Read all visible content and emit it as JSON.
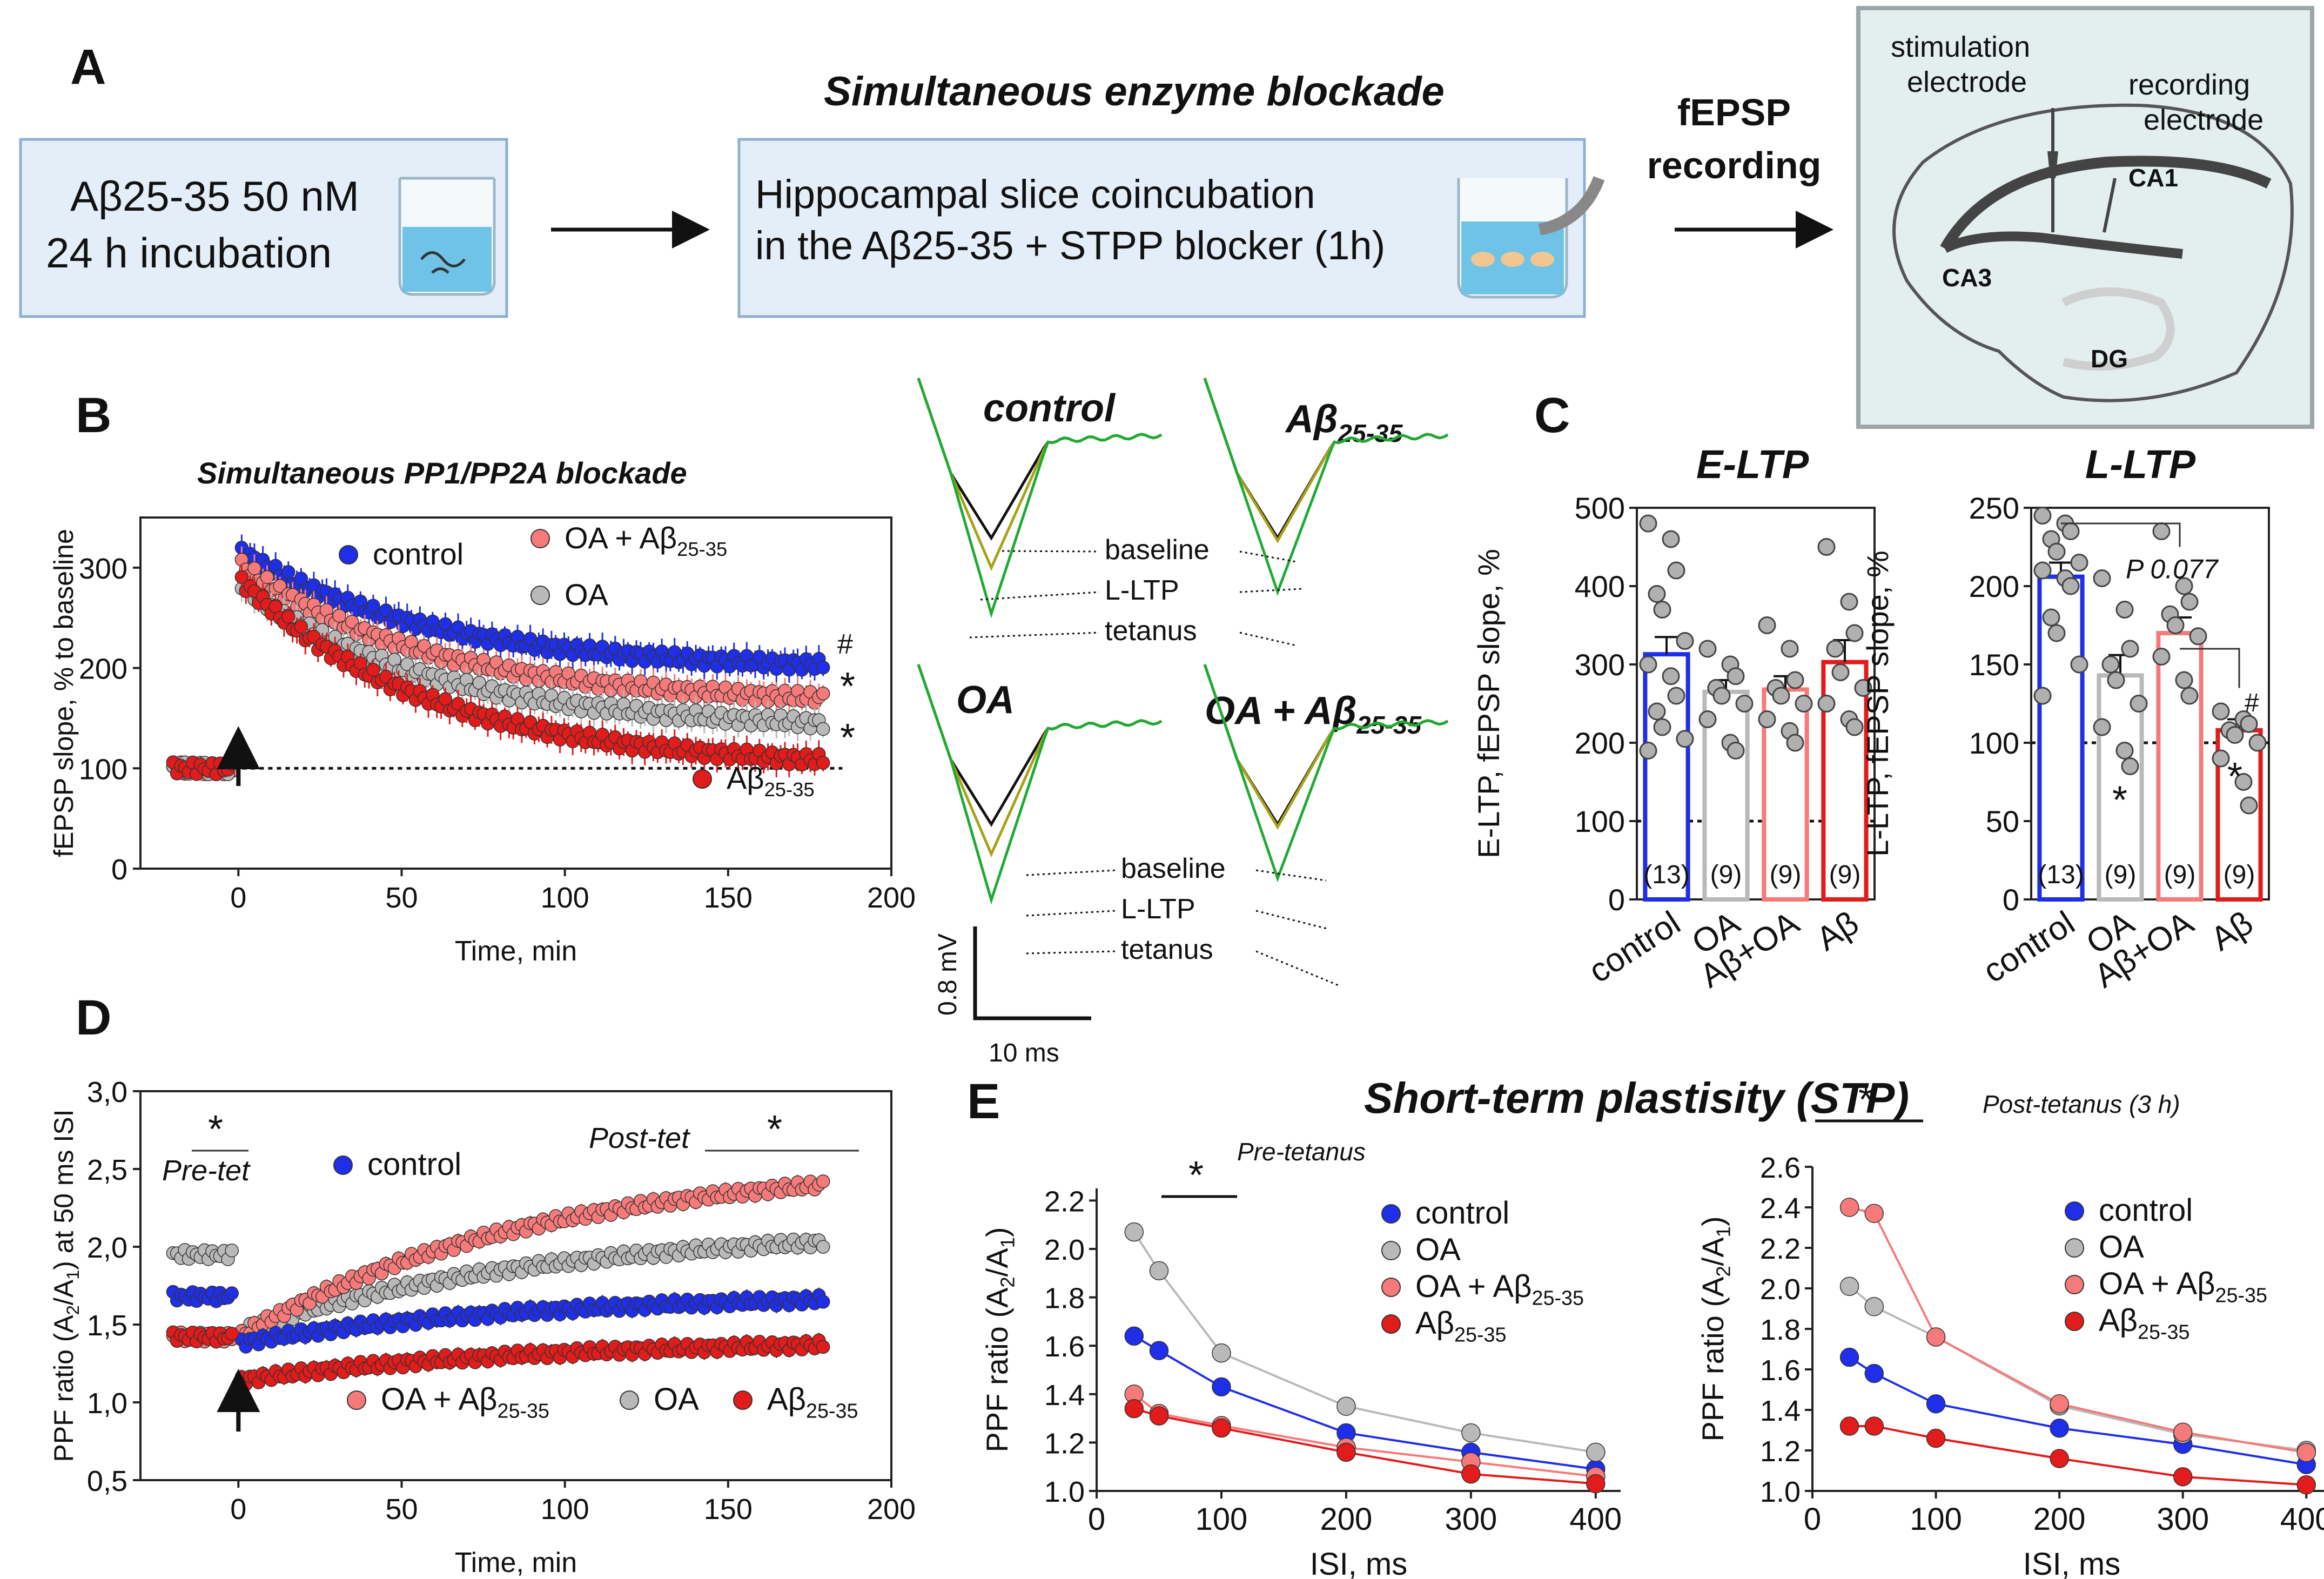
{
  "colors": {
    "control": "#1f2ee8",
    "oa": "#b9b9b9",
    "oa_ab": "#f77a7a",
    "ab": "#e21b1b",
    "box_fill": "#e3eef8",
    "box_stroke": "#8fb0cf",
    "title_blue": "#2a5d8f",
    "green": "#1faa33",
    "olive": "#a8a21a"
  },
  "panel_a": {
    "label": "A",
    "box1_line1": "Aβ25-35 50 nM",
    "box1_line2": "24 h incubation",
    "enzyme_title": "Simultaneous enzyme blockade",
    "box2_line1": "Hippocampal slice coincubation",
    "box2_line2": "in the Aβ25-35 + STPP blocker (1h)",
    "fepsp_line1": "fEPSP",
    "fepsp_line2": "recording",
    "stim_line1": "stimulation",
    "stim_line2": "electrode",
    "rec_line1": "recording",
    "rec_line2": "electrode",
    "ca1": "CA1",
    "ca3": "CA3",
    "dg": "DG"
  },
  "traces": {
    "control": "control",
    "ab": "Aβ25-35",
    "oa": "OA",
    "oa_ab": "OA + Aβ25-35",
    "baseline": "baseline",
    "lltp": "L-LTP",
    "tetanus": "tetanus",
    "scale_v": "0.8 mV",
    "scale_t": "10 ms"
  },
  "chart_data": [
    {
      "id": "B",
      "type": "scatter",
      "title": "Simultaneous PP1/PP2A blockade",
      "xlabel": "Time, min",
      "ylabel": "fEPSP slope, % to baseline",
      "xlim": [
        -30,
        200
      ],
      "ylim": [
        0,
        350
      ],
      "xticks": [
        0,
        50,
        100,
        150,
        200
      ],
      "yticks": [
        0,
        100,
        200,
        300
      ],
      "legend": [
        "control",
        "OA + Aβ25-35",
        "OA",
        "Aβ25-35"
      ],
      "series": [
        {
          "name": "control",
          "baseline": 100,
          "peak": 318,
          "end": 203
        },
        {
          "name": "OA + Aβ25-35",
          "baseline": 100,
          "peak": 305,
          "end": 170
        },
        {
          "name": "OA",
          "baseline": 100,
          "peak": 285,
          "end": 145
        },
        {
          "name": "Aβ25-35",
          "baseline": 100,
          "peak": 290,
          "end": 108
        }
      ],
      "annotations": [
        "#",
        "*",
        "*"
      ]
    },
    {
      "id": "C1",
      "type": "bar",
      "title": "E-LTP",
      "ylabel": "E-LTP, fEPSP slope, %",
      "categories": [
        "control",
        "OA",
        "Aβ+OA",
        "Aβ"
      ],
      "values": [
        313,
        265,
        268,
        303
      ],
      "errors": [
        22,
        15,
        17,
        28
      ],
      "n": [
        "(13)",
        "(9)",
        "(9)",
        "(9)"
      ],
      "ylim": [
        0,
        500
      ],
      "yticks": [
        0,
        100,
        200,
        300,
        400,
        500
      ],
      "points": [
        [
          480,
          460,
          420,
          390,
          370,
          330,
          300,
          285,
          260,
          240,
          220,
          205,
          190
        ],
        [
          320,
          300,
          285,
          270,
          260,
          250,
          230,
          200,
          190
        ],
        [
          350,
          320,
          280,
          270,
          260,
          250,
          230,
          215,
          200
        ],
        [
          450,
          380,
          340,
          320,
          290,
          270,
          250,
          230,
          220
        ]
      ]
    },
    {
      "id": "C2",
      "type": "bar",
      "title": "L-LTP",
      "ylabel": "L-LTP, fEPSP slope, %",
      "categories": [
        "control",
        "OA",
        "Aβ+OA",
        "Aβ"
      ],
      "values": [
        206,
        143,
        170,
        108
      ],
      "errors": [
        9,
        13,
        10,
        7
      ],
      "n": [
        "(13)",
        "(9)",
        "(9)",
        "(9)"
      ],
      "ylim": [
        0,
        250
      ],
      "yticks": [
        0,
        50,
        100,
        150,
        200,
        250
      ],
      "p_label": "P 0.077",
      "annotations": [
        "*",
        "#",
        "*"
      ],
      "points": [
        [
          245,
          240,
          235,
          230,
          222,
          215,
          210,
          205,
          200,
          180,
          170,
          150,
          130
        ],
        [
          205,
          185,
          160,
          150,
          140,
          125,
          110,
          95,
          85
        ],
        [
          235,
          200,
          190,
          182,
          175,
          168,
          155,
          140,
          130
        ],
        [
          120,
          115,
          112,
          108,
          105,
          100,
          90,
          75,
          60
        ]
      ]
    },
    {
      "id": "D",
      "type": "scatter",
      "xlabel": "Time, min",
      "ylabel": "PPF ratio (A2/A1) at 50 ms ISI",
      "xlim": [
        -30,
        200
      ],
      "ylim": [
        0.5,
        3.0
      ],
      "xticks": [
        0,
        50,
        100,
        150,
        200
      ],
      "yticks": [
        "0,5",
        "1,0",
        "1,5",
        "2,0",
        "2,5",
        "3,0"
      ],
      "ytick_values": [
        0.5,
        1.0,
        1.5,
        2.0,
        2.5,
        3.0
      ],
      "pre_tet": "Pre-tet",
      "post_tet": "Post-tet",
      "star": "*",
      "legend": [
        "control",
        "OA + Aβ25-35",
        "OA",
        "Aβ25-35"
      ],
      "series": [
        {
          "name": "control",
          "pre": 1.68,
          "post_start": 1.38,
          "post_end": 1.66
        },
        {
          "name": "OA + Aβ25-35",
          "pre": 1.42,
          "post_start": 1.42,
          "post_end": 2.4
        },
        {
          "name": "OA",
          "pre": 1.95,
          "post_start": 1.45,
          "post_end": 2.03
        },
        {
          "name": "Aβ25-35",
          "pre": 1.42,
          "post_start": 1.14,
          "post_end": 1.37
        }
      ]
    },
    {
      "id": "E1",
      "type": "line",
      "title": "Pre-tetanus",
      "xlabel": "ISI, ms",
      "ylabel": "PPF ratio (A2/A1)",
      "x": [
        30,
        50,
        100,
        200,
        300,
        400
      ],
      "xlim": [
        0,
        420
      ],
      "xticks": [
        0,
        100,
        200,
        300,
        400
      ],
      "ylim": [
        1.0,
        2.25
      ],
      "yticks": [
        1.0,
        1.2,
        1.4,
        1.6,
        1.8,
        2.0,
        2.2
      ],
      "star": "*",
      "series": [
        {
          "name": "control",
          "values": [
            1.64,
            1.58,
            1.43,
            1.24,
            1.16,
            1.09
          ]
        },
        {
          "name": "OA",
          "values": [
            2.07,
            1.91,
            1.57,
            1.35,
            1.24,
            1.16
          ]
        },
        {
          "name": "OA + Aβ25-35",
          "values": [
            1.4,
            1.32,
            1.27,
            1.18,
            1.12,
            1.06
          ]
        },
        {
          "name": "Aβ25-35",
          "values": [
            1.34,
            1.31,
            1.26,
            1.16,
            1.07,
            1.03
          ]
        }
      ]
    },
    {
      "id": "E2",
      "type": "line",
      "title": "Post-tetanus (3 h)",
      "xlabel": "ISI, ms",
      "ylabel": "PPF ratio (A2/A1)",
      "x": [
        30,
        50,
        100,
        200,
        300,
        400
      ],
      "xlim": [
        0,
        420
      ],
      "xticks": [
        0,
        100,
        200,
        300,
        400
      ],
      "ylim": [
        1.0,
        2.6
      ],
      "yticks": [
        1.0,
        1.2,
        1.4,
        1.6,
        1.8,
        2.0,
        2.2,
        2.4,
        2.6
      ],
      "star": "*",
      "series": [
        {
          "name": "control",
          "values": [
            1.66,
            1.58,
            1.43,
            1.31,
            1.23,
            1.13
          ]
        },
        {
          "name": "OA",
          "values": [
            2.01,
            1.91,
            1.76,
            1.42,
            1.28,
            1.2
          ]
        },
        {
          "name": "OA + Aβ25-35",
          "values": [
            2.4,
            2.37,
            1.76,
            1.43,
            1.29,
            1.19
          ]
        },
        {
          "name": "Aβ25-35",
          "values": [
            1.32,
            1.32,
            1.26,
            1.16,
            1.07,
            1.03
          ]
        }
      ]
    }
  ],
  "stp_title": "Short-term plastisity (STP)",
  "labels": {
    "B": "B",
    "C": "C",
    "D": "D",
    "E": "E"
  }
}
